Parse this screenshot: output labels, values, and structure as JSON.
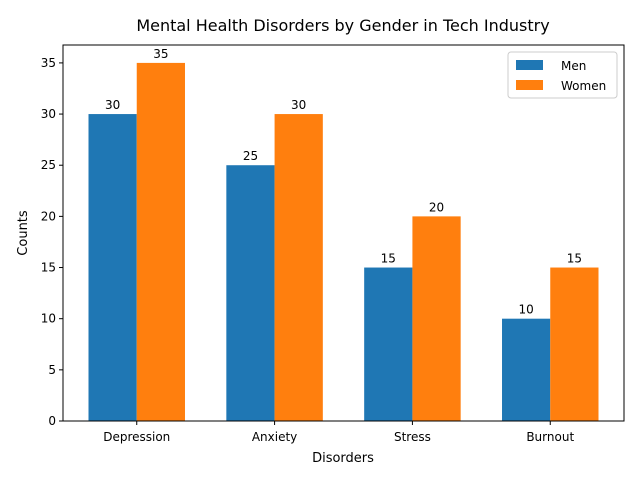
{
  "chart_data": {
    "type": "bar",
    "title": "Mental Health Disorders by Gender in Tech Industry",
    "xlabel": "Disorders",
    "ylabel": "Counts",
    "categories": [
      "Depression",
      "Anxiety",
      "Stress",
      "Burnout"
    ],
    "series": [
      {
        "name": "Men",
        "values": [
          30,
          25,
          15,
          10
        ],
        "color": "#1f77b4"
      },
      {
        "name": "Women",
        "values": [
          35,
          30,
          20,
          15
        ],
        "color": "#ff7f0e"
      }
    ],
    "ylim": [
      0,
      36.75
    ],
    "yticks": [
      0,
      5,
      10,
      15,
      20,
      25,
      30,
      35
    ],
    "legend": "top-right",
    "grid": false
  }
}
